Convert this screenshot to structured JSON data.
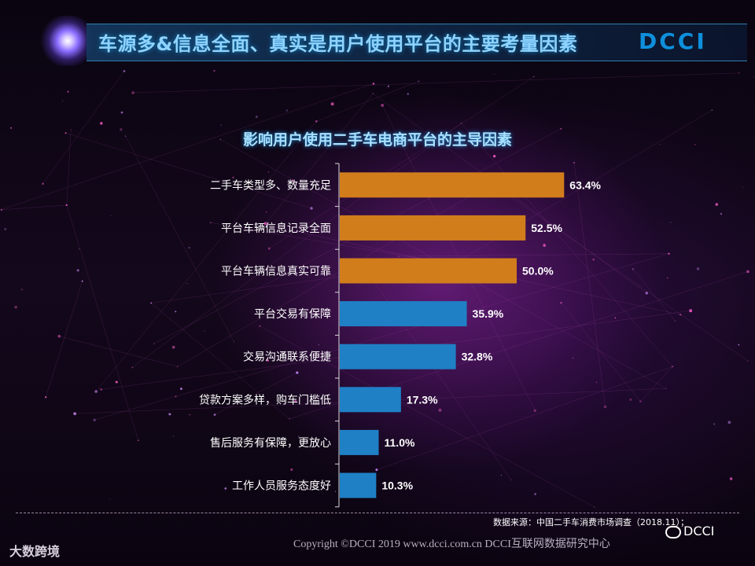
{
  "header": {
    "title": "车源多&信息全面、真实是用户使用平台的主要考量因素",
    "logo": "DCCI"
  },
  "chart_data": {
    "type": "bar",
    "orientation": "horizontal",
    "title": "影响用户使用二手车电商平台的主导因素",
    "categories": [
      "二手车类型多、数量充足",
      "平台车辆信息记录全面",
      "平台车辆信息真实可靠",
      "平台交易有保障",
      "交易沟通联系便捷",
      "贷款方案多样，购车门槛低",
      "售后服务有保障，更放心",
      "工作人员服务态度好"
    ],
    "values": [
      63.4,
      52.5,
      50.0,
      35.9,
      32.8,
      17.3,
      11.0,
      10.3
    ],
    "value_labels": [
      "63.4%",
      "52.5%",
      "50.0%",
      "35.9%",
      "32.8%",
      "17.3%",
      "11.0%",
      "10.3%"
    ],
    "xlim": [
      0,
      100
    ],
    "grid": false,
    "bar_colors": [
      "#d27d1c",
      "#d27d1c",
      "#d27d1c",
      "#1f80c6",
      "#1f80c6",
      "#1f80c6",
      "#1f80c6",
      "#1f80c6"
    ]
  },
  "footer": {
    "source": "数据来源：中国二手车消费市场调查（2018.11）；",
    "copyright": "Copyright ©DCCI 2019 www.dcci.com.cn DCCI互联网数据研究中心",
    "watermark_wechat": "DCCI",
    "watermark_corner": "大数跨境"
  }
}
